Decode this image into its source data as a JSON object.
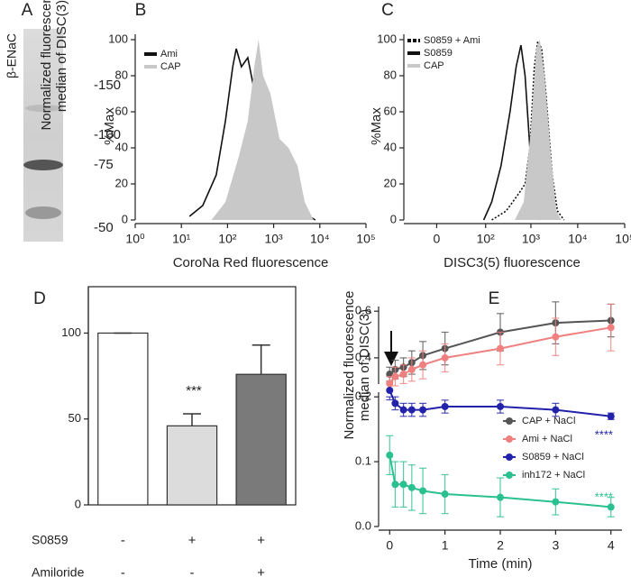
{
  "chart_data": [
    {
      "type": "blot",
      "panel": "A",
      "label": "β-ENaC",
      "markers": [
        "-150",
        "-100",
        "-75",
        "-50"
      ]
    },
    {
      "type": "histogram",
      "panel": "B",
      "ylabel": "%Max",
      "xlabel": "CoroNa Red fluorescence",
      "xscale": "log",
      "xlim": [
        1,
        100000
      ],
      "ylim": [
        0,
        103
      ],
      "xticks": [
        {
          "value": 1,
          "label": "10⁰"
        },
        {
          "value": 10,
          "label": "10¹"
        },
        {
          "value": 100,
          "label": "10²"
        },
        {
          "value": 1000,
          "label": "10³"
        },
        {
          "value": 10000,
          "label": "10⁴"
        },
        {
          "value": 100000,
          "label": "10⁵"
        }
      ],
      "yticks": [
        0,
        20,
        40,
        60,
        80,
        100
      ],
      "series": [
        {
          "name": "Ami",
          "color": "#111111",
          "fill": false,
          "x": [
            15,
            29,
            57,
            90,
            130,
            155,
            200,
            275,
            430,
            680,
            1060,
            1660,
            2300,
            3300,
            5100,
            8000
          ],
          "values": [
            2,
            8,
            25,
            55,
            85,
            95,
            85,
            90,
            65,
            52,
            45,
            25,
            30,
            15,
            3,
            0
          ]
        },
        {
          "name": "CAP",
          "color": "#c8c8c8",
          "fill": true,
          "x": [
            45,
            90,
            175,
            275,
            380,
            470,
            590,
            850,
            1340,
            2100,
            3300,
            4700,
            7300
          ],
          "values": [
            0,
            10,
            35,
            55,
            85,
            100,
            80,
            70,
            45,
            40,
            30,
            10,
            0
          ]
        }
      ]
    },
    {
      "type": "histogram",
      "panel": "C",
      "ylabel": "%Max",
      "xlabel": "DISC3(5) fluorescence",
      "xscale": "symlog",
      "linthresh": 10,
      "xlim": [
        -40,
        100000
      ],
      "ylim": [
        0,
        103
      ],
      "xticks": [
        0,
        {
          "value": 100,
          "label": "10²"
        },
        {
          "value": 1000,
          "label": "10³"
        },
        {
          "value": 10000,
          "label": "10⁴"
        },
        {
          "value": 100000,
          "label": "10⁵"
        }
      ],
      "yticks": [
        0,
        20,
        40,
        60,
        80,
        100
      ],
      "series": [
        {
          "name": "S0859 + Ami",
          "color": "#111111",
          "fill": false,
          "dash": true,
          "x": [
            138,
            290,
            560,
            750,
            950,
            1190,
            1400,
            1700,
            2100,
            2860,
            3700,
            5100
          ],
          "values": [
            0,
            5,
            15,
            20,
            40,
            85,
            99,
            95,
            70,
            25,
            5,
            0
          ]
        },
        {
          "name": "S0859",
          "color": "#111111",
          "fill": false,
          "x": [
            90,
            138,
            224,
            353,
            480,
            610,
            750,
            950,
            1190,
            1540
          ],
          "values": [
            0,
            10,
            30,
            60,
            85,
            97,
            80,
            40,
            10,
            0
          ]
        },
        {
          "name": "CAP",
          "color": "#c8c8c8",
          "fill": true,
          "x": [
            450,
            700,
            1000,
            1300,
            1550,
            1950,
            2700,
            3500,
            4500
          ],
          "values": [
            0,
            10,
            50,
            95,
            100,
            80,
            35,
            5,
            0
          ]
        }
      ]
    },
    {
      "type": "bar",
      "panel": "D",
      "ylabel": [
        "Normalized fluorescence",
        "median of DISC(3)"
      ],
      "ylim": [
        0,
        127
      ],
      "yticks": [
        0,
        50,
        100
      ],
      "values": [
        100,
        46,
        76
      ],
      "errors": [
        0,
        7,
        17
      ],
      "colors": [
        "#ffffff",
        "#dcdcdc",
        "#7a7a7a"
      ],
      "annotations": [
        {
          "text": "***"
        }
      ],
      "rows": [
        {
          "name": "S0859",
          "marks": [
            "-",
            "+",
            "+"
          ]
        },
        {
          "name": "Amiloride",
          "marks": [
            "-",
            "-",
            "+"
          ]
        }
      ]
    },
    {
      "type": "line",
      "panel": "E",
      "ylabel": [
        "Normalized fluorescence",
        "median of DISC(3)"
      ],
      "xlabel": "Time (min)",
      "xlim": [
        -0.2,
        4.2
      ],
      "xticks": [
        0,
        1,
        2,
        3,
        4
      ],
      "ylim": [
        0,
        0.62
      ],
      "ybreak": [
        0.21,
        0.28
      ],
      "yticks": [
        {
          "value": 0,
          "label": "0.0"
        },
        0.1,
        0.2,
        0.4,
        0.6
      ],
      "x": [
        0,
        0.1,
        0.25,
        0.4,
        0.6,
        1,
        2,
        3,
        4
      ],
      "series": [
        {
          "name": "CAP + NaCl",
          "color": "#555555",
          "values": [
            0.33,
            0.35,
            0.36,
            0.38,
            0.41,
            0.44,
            0.51,
            0.55,
            0.56
          ],
          "errors": [
            0.03,
            0.04,
            0.04,
            0.05,
            0.06,
            0.07,
            0.08,
            0.09,
            0.07
          ]
        },
        {
          "name": "Ami + NaCl",
          "color": "#f08080",
          "values": [
            0.29,
            0.32,
            0.33,
            0.35,
            0.37,
            0.4,
            0.44,
            0.49,
            0.53
          ],
          "errors": [
            0.03,
            0.04,
            0.04,
            0.05,
            0.06,
            0.06,
            0.07,
            0.08,
            0.1
          ]
        },
        {
          "name": "S0859 + NaCl",
          "color": "#2222aa",
          "values": [
            0.21,
            0.19,
            0.18,
            0.18,
            0.18,
            0.185,
            0.185,
            0.18,
            0.17
          ],
          "errors": [
            0.01,
            0.01,
            0.01,
            0.01,
            0.01,
            0.01,
            0.01,
            0.01,
            0.005
          ]
        },
        {
          "name": "inh172 + NaCl",
          "color": "#2bc08f",
          "values": [
            0.11,
            0.065,
            0.065,
            0.06,
            0.055,
            0.05,
            0.045,
            0.038,
            0.03
          ],
          "errors": [
            0.03,
            0.035,
            0.035,
            0.035,
            0.035,
            0.03,
            0.03,
            0.02,
            0.015
          ]
        }
      ],
      "annotations": [
        {
          "text": "****",
          "color": "#2222aa"
        },
        {
          "text": "****",
          "color": "#2bc08f"
        }
      ]
    }
  ]
}
